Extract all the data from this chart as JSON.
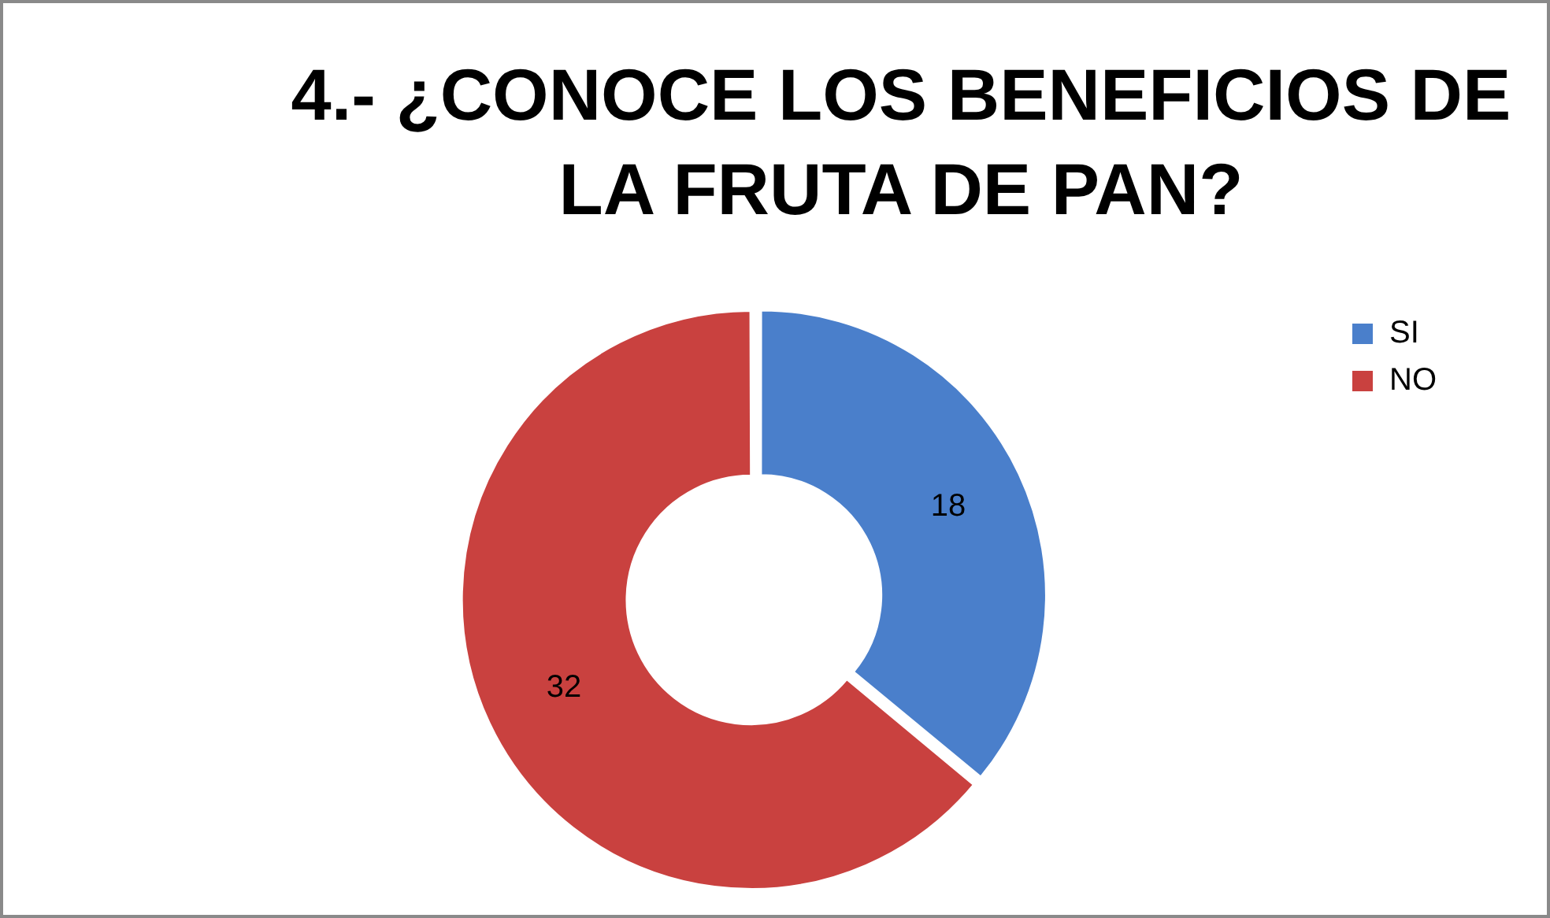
{
  "chart_data": {
    "type": "donut",
    "title": "4.- ¿CONOCE LOS BENEFICIOS DE LA FRUTA DE PAN?",
    "categories": [
      "SI",
      "NO"
    ],
    "values": [
      18,
      32
    ],
    "colors": [
      "#4a7fcb",
      "#c9413f"
    ],
    "legend": "right",
    "data_labels": true
  }
}
